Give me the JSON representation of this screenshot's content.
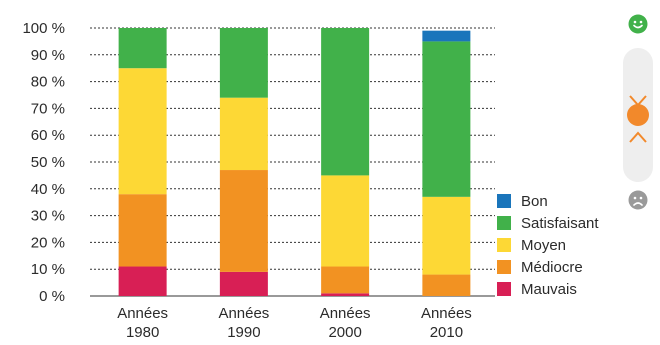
{
  "chart_data": {
    "type": "bar",
    "stacked": true,
    "categories": [
      [
        "Années",
        "1980"
      ],
      [
        "Années",
        "1990"
      ],
      [
        "Années",
        "2000"
      ],
      [
        "Années",
        "2010"
      ]
    ],
    "ylim": [
      0,
      100
    ],
    "yticks": [
      "0 %",
      "10 %",
      "20 %",
      "30 %",
      "40 %",
      "50 %",
      "60 %",
      "70 %",
      "80 %",
      "90 %",
      "100 %"
    ],
    "grid": true,
    "legend_position": "right",
    "series": [
      {
        "name": "Mauvais",
        "color": "#d81f55",
        "values": [
          11,
          9,
          1,
          0
        ]
      },
      {
        "name": "Médiocre",
        "color": "#f29222",
        "values": [
          27,
          38,
          10,
          8
        ]
      },
      {
        "name": "Moyen",
        "color": "#fdd835",
        "values": [
          47,
          27,
          34,
          29
        ]
      },
      {
        "name": "Satisfaisant",
        "color": "#41b14a",
        "values": [
          15,
          26,
          55,
          58
        ]
      },
      {
        "name": "Bon",
        "color": "#1a75bb",
        "values": [
          0,
          0,
          0,
          4
        ]
      }
    ]
  },
  "legend_order": [
    "Bon",
    "Satisfaisant",
    "Moyen",
    "Médiocre",
    "Mauvais"
  ],
  "side_control": {
    "top_icon": "happy-smiley-icon",
    "bottom_icon": "sad-smiley-icon",
    "thumb_color": "#f2892b",
    "level": 0.62
  }
}
